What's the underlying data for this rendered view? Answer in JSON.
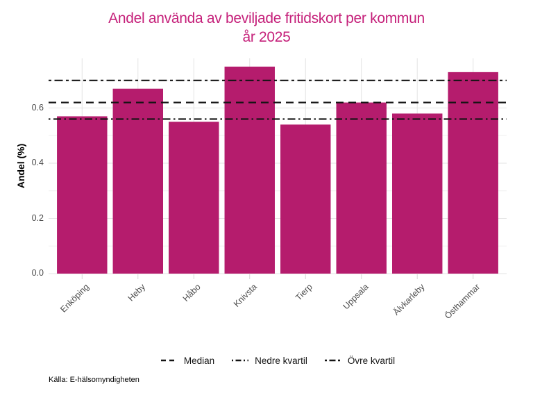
{
  "title": {
    "line1": "Andel använda av beviljade fritidskort per kommun",
    "line2": "år 2025"
  },
  "caption": "Källa: E-hälsomyndigheten",
  "colors": {
    "bar": "#B51C6D",
    "title": "#C5207A",
    "grid_major": "#E3E3E3",
    "grid_minor": "#F0F0F0",
    "axis_text": "#4D4D4D",
    "axis_tick": "#D6D6D6",
    "reference_line": "#141414"
  },
  "chart_data": {
    "type": "bar",
    "title": "Andel använda av beviljade fritidskort per kommun år 2025",
    "xlabel": "",
    "ylabel": "Andel (%)",
    "categories": [
      "Enköping",
      "Heby",
      "Håbo",
      "Knivsta",
      "Tierp",
      "Uppsala",
      "Älvkarleby",
      "Östhammar"
    ],
    "values": [
      0.57,
      0.67,
      0.55,
      0.75,
      0.54,
      0.62,
      0.58,
      0.73
    ],
    "y_ticks": [
      0.0,
      0.2,
      0.4,
      0.6
    ],
    "y_minor_ticks": [
      0.1,
      0.3,
      0.5,
      0.7
    ],
    "ylim": [
      0,
      0.78
    ],
    "grid": true,
    "legend_position": "bottom",
    "reference_lines": [
      {
        "label": "Median",
        "value": 0.62,
        "style": "dashed"
      },
      {
        "label": "Nedre kvartil",
        "value": 0.56,
        "style": "dotdash"
      },
      {
        "label": "Övre kvartil",
        "value": 0.7,
        "style": "twodash"
      }
    ]
  }
}
